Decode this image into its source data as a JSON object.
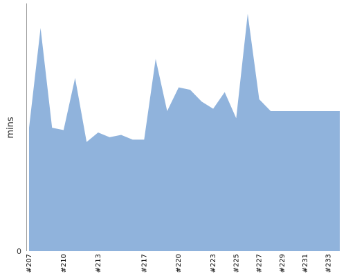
{
  "chart_data": {
    "type": "area",
    "title": "",
    "xlabel": "",
    "ylabel": "mins",
    "yticks": [
      "0"
    ],
    "ylim": [
      0,
      100
    ],
    "grid": false,
    "legend": "none",
    "fill_color": "#90b3dc",
    "axis_color": "#999999",
    "x": [
      "#207",
      "#208",
      "#209",
      "#210",
      "#211",
      "#212",
      "#213",
      "#214",
      "#215",
      "#216",
      "#217",
      "#218",
      "#219",
      "#220",
      "#221",
      "#222",
      "#223",
      "#224",
      "#225",
      "#226",
      "#227",
      "#228",
      "#229",
      "#230",
      "#231",
      "#232",
      "#233",
      "#234"
    ],
    "xtick_labels": [
      "#207",
      "#210",
      "#213",
      "#217",
      "#220",
      "#223",
      "#225",
      "#227",
      "#229",
      "#231",
      "#233"
    ],
    "values": [
      52,
      94,
      52,
      51,
      73,
      46,
      50,
      48,
      49,
      47,
      47,
      81,
      59,
      69,
      68,
      63,
      60,
      67,
      56,
      100,
      64,
      59,
      59,
      59,
      59,
      59,
      59,
      59
    ]
  }
}
